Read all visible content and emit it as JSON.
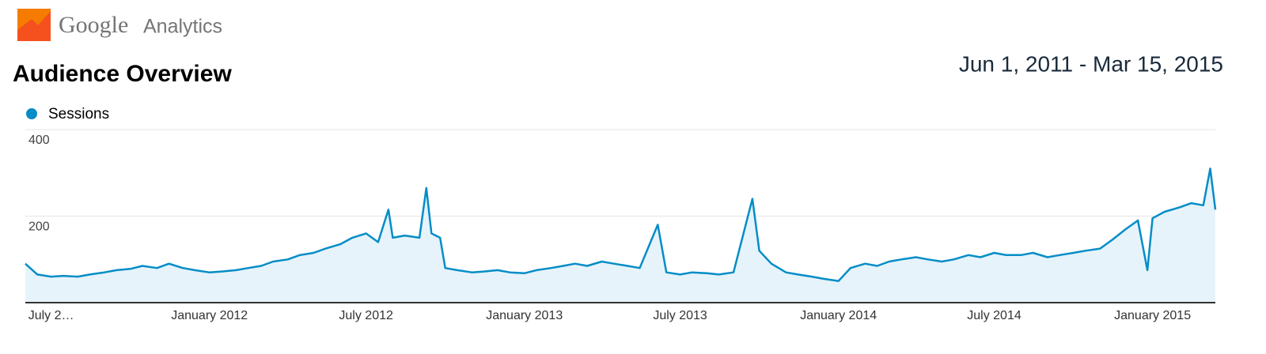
{
  "header": {
    "logo_google": "Google",
    "logo_product": "Analytics"
  },
  "page_title": "Audience Overview",
  "date_range": "Jun 1, 2011 - Mar 15, 2015",
  "chart_data": {
    "type": "line",
    "x": [
      "2011-06-01",
      "2011-06-15",
      "2011-07-01",
      "2011-07-15",
      "2011-08-01",
      "2011-08-15",
      "2011-09-01",
      "2011-09-15",
      "2011-10-01",
      "2011-10-15",
      "2011-11-01",
      "2011-11-15",
      "2011-12-01",
      "2011-12-15",
      "2012-01-01",
      "2012-01-15",
      "2012-02-01",
      "2012-02-15",
      "2012-03-01",
      "2012-03-15",
      "2012-04-01",
      "2012-04-15",
      "2012-05-01",
      "2012-05-15",
      "2012-06-01",
      "2012-06-15",
      "2012-07-01",
      "2012-07-15",
      "2012-07-27",
      "2012-08-01",
      "2012-08-15",
      "2012-09-01",
      "2012-09-09",
      "2012-09-15",
      "2012-09-25",
      "2012-10-01",
      "2012-10-15",
      "2012-11-01",
      "2012-11-15",
      "2012-12-01",
      "2012-12-15",
      "2013-01-01",
      "2013-01-15",
      "2013-02-01",
      "2013-02-15",
      "2013-03-01",
      "2013-03-15",
      "2013-04-01",
      "2013-04-15",
      "2013-05-01",
      "2013-05-15",
      "2013-06-05",
      "2013-06-15",
      "2013-07-01",
      "2013-07-15",
      "2013-08-01",
      "2013-08-15",
      "2013-09-01",
      "2013-09-10",
      "2013-09-23",
      "2013-10-01",
      "2013-10-15",
      "2013-11-01",
      "2013-11-15",
      "2013-12-01",
      "2013-12-15",
      "2014-01-01",
      "2014-01-15",
      "2014-02-01",
      "2014-02-15",
      "2014-03-01",
      "2014-03-15",
      "2014-04-01",
      "2014-04-15",
      "2014-05-01",
      "2014-05-15",
      "2014-06-01",
      "2014-06-15",
      "2014-07-01",
      "2014-07-15",
      "2014-08-01",
      "2014-08-15",
      "2014-09-01",
      "2014-09-15",
      "2014-10-01",
      "2014-10-15",
      "2014-11-01",
      "2014-11-15",
      "2014-12-01",
      "2014-12-15",
      "2014-12-26",
      "2015-01-01",
      "2015-01-15",
      "2015-02-01",
      "2015-02-15",
      "2015-03-01",
      "2015-03-09",
      "2015-03-15"
    ],
    "series": [
      {
        "name": "Sessions",
        "color": "#058dc7",
        "values": [
          90,
          65,
          60,
          62,
          60,
          65,
          70,
          75,
          78,
          85,
          80,
          90,
          80,
          75,
          70,
          72,
          75,
          80,
          85,
          95,
          100,
          110,
          115,
          125,
          135,
          150,
          160,
          140,
          215,
          150,
          155,
          150,
          265,
          160,
          150,
          80,
          75,
          70,
          72,
          75,
          70,
          68,
          75,
          80,
          85,
          90,
          85,
          95,
          90,
          85,
          80,
          180,
          70,
          65,
          70,
          68,
          65,
          70,
          140,
          240,
          120,
          90,
          70,
          65,
          60,
          55,
          50,
          80,
          90,
          85,
          95,
          100,
          105,
          100,
          95,
          100,
          110,
          105,
          115,
          110,
          110,
          115,
          105,
          110,
          115,
          120,
          125,
          145,
          170,
          190,
          75,
          195,
          210,
          220,
          230,
          225,
          310,
          215
        ]
      }
    ],
    "xlim": [
      "2011-06-01",
      "2015-03-15"
    ],
    "xticks": [
      {
        "value": "2011-07-01",
        "label": "July 2…"
      },
      {
        "value": "2012-01-01",
        "label": "January 2012"
      },
      {
        "value": "2012-07-01",
        "label": "July 2012"
      },
      {
        "value": "2013-01-01",
        "label": "January 2013"
      },
      {
        "value": "2013-07-01",
        "label": "July 2013"
      },
      {
        "value": "2014-01-01",
        "label": "January 2014"
      },
      {
        "value": "2014-07-01",
        "label": "July 2014"
      },
      {
        "value": "2015-01-01",
        "label": "January 2015"
      }
    ],
    "ylim": [
      0,
      400
    ],
    "yticks": [
      200,
      400
    ],
    "grid": true
  }
}
